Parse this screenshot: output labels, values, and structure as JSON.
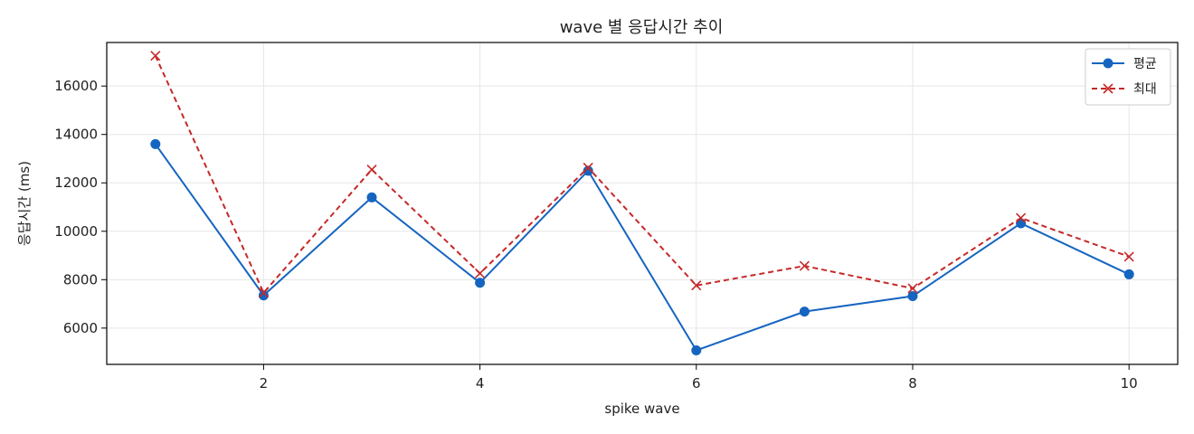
{
  "chart_data": {
    "type": "line",
    "title": "wave 별 응답시간 추이",
    "xlabel": "spike wave",
    "ylabel": "응답시간 (ms)",
    "x": [
      1,
      2,
      3,
      4,
      5,
      6,
      7,
      8,
      9,
      10
    ],
    "xlim": [
      0.55,
      10.45
    ],
    "ylim": [
      4500,
      17800
    ],
    "xticks": [
      2,
      4,
      6,
      8,
      10
    ],
    "yticks": [
      6000,
      8000,
      10000,
      12000,
      14000,
      16000
    ],
    "grid": true,
    "legend_position": "top-right",
    "series": [
      {
        "name": "평균",
        "color": "#1565c0",
        "line_style": "solid",
        "marker": "circle",
        "values": [
          13600,
          7350,
          11400,
          7870,
          12500,
          5080,
          6680,
          7320,
          10330,
          8220
        ]
      },
      {
        "name": "최대",
        "color": "#c62828",
        "line_style": "dashed",
        "marker": "x",
        "values": [
          17250,
          7460,
          12550,
          8260,
          12630,
          7760,
          8570,
          7640,
          10550,
          8950
        ]
      }
    ]
  }
}
